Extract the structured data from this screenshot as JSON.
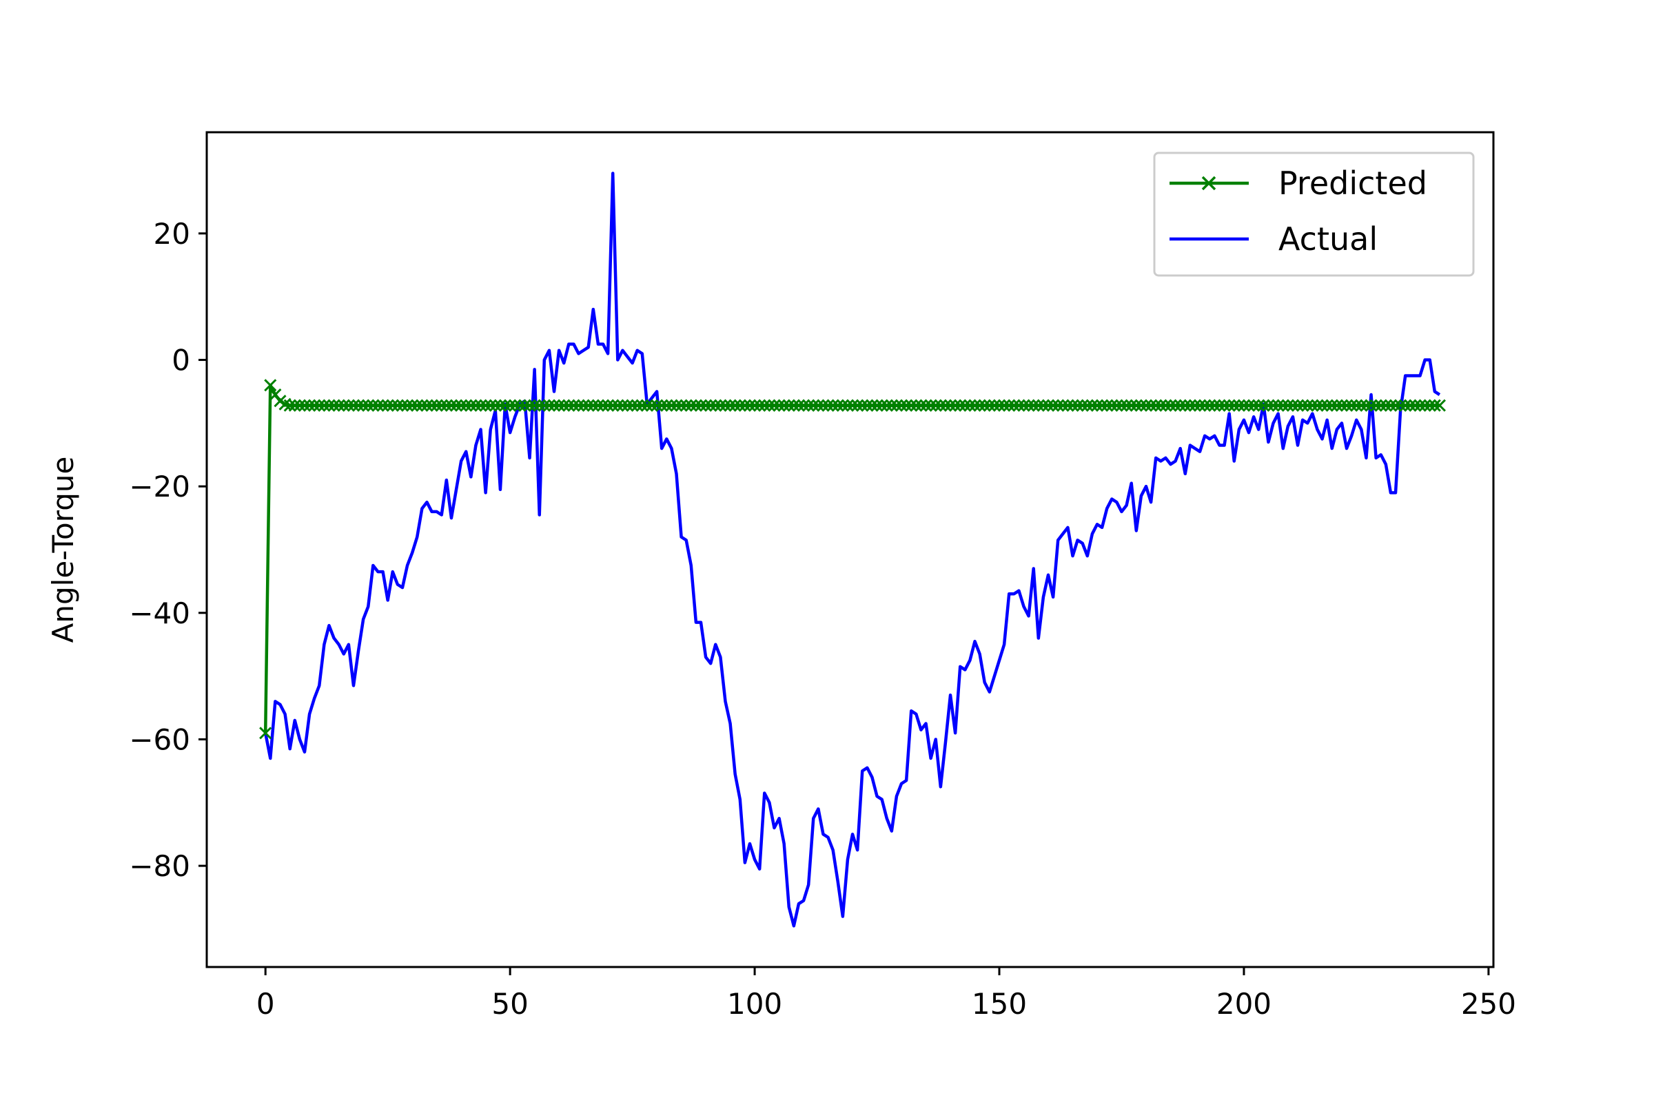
{
  "chart_data": {
    "type": "line",
    "title": "",
    "xlabel": "",
    "ylabel": "Angle-Torque",
    "xlim": [
      -12,
      251
    ],
    "ylim": [
      -96,
      36
    ],
    "xticks": [
      0,
      50,
      100,
      150,
      200,
      250
    ],
    "yticks": [
      20,
      0,
      -20,
      -40,
      -60,
      -80
    ],
    "xtick_labels": [
      "0",
      "50",
      "100",
      "150",
      "200",
      "250"
    ],
    "ytick_labels": [
      "20",
      "0",
      "−20",
      "−40",
      "−60",
      "−80"
    ],
    "grid": false,
    "legend": "top-right",
    "colors": {
      "predicted": "#008000",
      "actual": "#0000ff"
    },
    "series": [
      {
        "name": "Predicted",
        "marker": "x",
        "color": "#008000",
        "x_start": 0,
        "x_end": 240,
        "values_head": [
          -59,
          -4,
          -5.5,
          -6.5,
          -7,
          -7.2
        ],
        "steady_value": -7.2
      },
      {
        "name": "Actual",
        "color": "#0000ff",
        "x": [
          0,
          1,
          2,
          3,
          4,
          5,
          6,
          7,
          8,
          9,
          10,
          11,
          12,
          13,
          14,
          15,
          16,
          17,
          18,
          19,
          20,
          21,
          22,
          23,
          24,
          25,
          26,
          27,
          28,
          29,
          30,
          31,
          32,
          33,
          34,
          35,
          36,
          37,
          38,
          39,
          40,
          41,
          42,
          43,
          44,
          45,
          46,
          47,
          48,
          49,
          50,
          51,
          52,
          53,
          54,
          55,
          56,
          57,
          58,
          59,
          60,
          61,
          62,
          63,
          64,
          65,
          66,
          67,
          68,
          69,
          70,
          71,
          72,
          73,
          74,
          75,
          76,
          77,
          78,
          79,
          80,
          81,
          82,
          83,
          84,
          85,
          86,
          87,
          88,
          89,
          90,
          91,
          92,
          93,
          94,
          95,
          96,
          97,
          98,
          99,
          100,
          101,
          102,
          103,
          104,
          105,
          106,
          107,
          108,
          109,
          110,
          111,
          112,
          113,
          114,
          115,
          116,
          117,
          118,
          119,
          120,
          121,
          122,
          123,
          124,
          125,
          126,
          127,
          128,
          129,
          130,
          131,
          132,
          133,
          134,
          135,
          136,
          137,
          138,
          139,
          140,
          141,
          142,
          143,
          144,
          145,
          146,
          147,
          148,
          149,
          150,
          151,
          152,
          153,
          154,
          155,
          156,
          157,
          158,
          159,
          160,
          161,
          162,
          163,
          164,
          165,
          166,
          167,
          168,
          169,
          170,
          171,
          172,
          173,
          174,
          175,
          176,
          177,
          178,
          179,
          180,
          181,
          182,
          183,
          184,
          185,
          186,
          187,
          188,
          189,
          190,
          191,
          192,
          193,
          194,
          195,
          196,
          197,
          198,
          199,
          200,
          201,
          202,
          203,
          204,
          205,
          206,
          207,
          208,
          209,
          210,
          211,
          212,
          213,
          214,
          215,
          216,
          217,
          218,
          219,
          220,
          221,
          222,
          223,
          224,
          225,
          226,
          227,
          228,
          229,
          230,
          231,
          232,
          233,
          234,
          235,
          236,
          237,
          238,
          239,
          240
        ],
        "values": [
          -59,
          -63,
          -54,
          -54.5,
          -56,
          -61.5,
          -57,
          -60,
          -62,
          -56,
          -53.5,
          -51.5,
          -45,
          -42,
          -44,
          -45,
          -46.5,
          -45,
          -51.5,
          -46,
          -41,
          -39,
          -32.5,
          -33.5,
          -33.5,
          -38,
          -33.5,
          -35.5,
          -36,
          -32.5,
          -30.5,
          -28,
          -23.5,
          -22.5,
          -24,
          -24,
          -24.5,
          -19,
          -25,
          -20.5,
          -16,
          -14.5,
          -18.5,
          -13.5,
          -11,
          -21,
          -11,
          -8,
          -20.5,
          -7,
          -11.5,
          -9,
          -7,
          -6.5,
          -15.5,
          -1.5,
          -24.5,
          0,
          1.5,
          -5,
          1.5,
          -0.5,
          2.5,
          2.5,
          1,
          1.5,
          2,
          8,
          2.5,
          2.5,
          1,
          29.5,
          0,
          1.5,
          0.5,
          -0.5,
          1.5,
          1,
          -7,
          -6,
          -5,
          -14,
          -12.5,
          -14,
          -18,
          -28,
          -28.5,
          -32.5,
          -41.5,
          -41.5,
          -47,
          -48,
          -45,
          -47,
          -54,
          -57.5,
          -65.5,
          -69.5,
          -79.5,
          -76.5,
          -79,
          -80.5,
          -68.5,
          -70,
          -74,
          -72.5,
          -76.5,
          -86.5,
          -89.5,
          -86,
          -85.5,
          -83,
          -72.5,
          -71,
          -75,
          -75.5,
          -77.5,
          -82.5,
          -88,
          -79,
          -75,
          -77.5,
          -65,
          -64.5,
          -66,
          -69,
          -69.5,
          -72.5,
          -74.5,
          -69,
          -67,
          -66.5,
          -55.5,
          -56,
          -58.5,
          -57.5,
          -63,
          -60,
          -67.5,
          -60.5,
          -53,
          -59,
          -48.5,
          -49,
          -47.5,
          -44.5,
          -46.5,
          -51,
          -52.5,
          -50,
          -47.5,
          -45,
          -37,
          -37,
          -36.5,
          -39,
          -40.5,
          -33,
          -44,
          -37.5,
          -34,
          -37.5,
          -28.5,
          -27.5,
          -26.5,
          -31,
          -28.5,
          -29,
          -31,
          -27.5,
          -26,
          -26.5,
          -23.5,
          -22,
          -22.5,
          -24,
          -23,
          -19.5,
          -27,
          -21.5,
          -20,
          -22.5,
          -15.5,
          -16,
          -15.5,
          -16.5,
          -16,
          -14,
          -18,
          -13.5,
          -14,
          -14.5,
          -12,
          -12.5,
          -12,
          -13.5,
          -13.5,
          -8.5,
          -16,
          -11,
          -9.5,
          -11.5,
          -9,
          -11,
          -7,
          -13,
          -10,
          -8.5,
          -14,
          -10.5,
          -9,
          -13.5,
          -9.5,
          -10,
          -8.5,
          -11,
          -12.5,
          -9.5,
          -14,
          -11,
          -10,
          -14,
          -12,
          -9.5,
          -11,
          -15.5,
          -5.5,
          -15.5,
          -15,
          -16.5,
          -21,
          -21,
          -8,
          -2.5,
          -2.5,
          -2.5,
          -2.5,
          0,
          0,
          -5,
          -5.5
        ]
      }
    ]
  }
}
